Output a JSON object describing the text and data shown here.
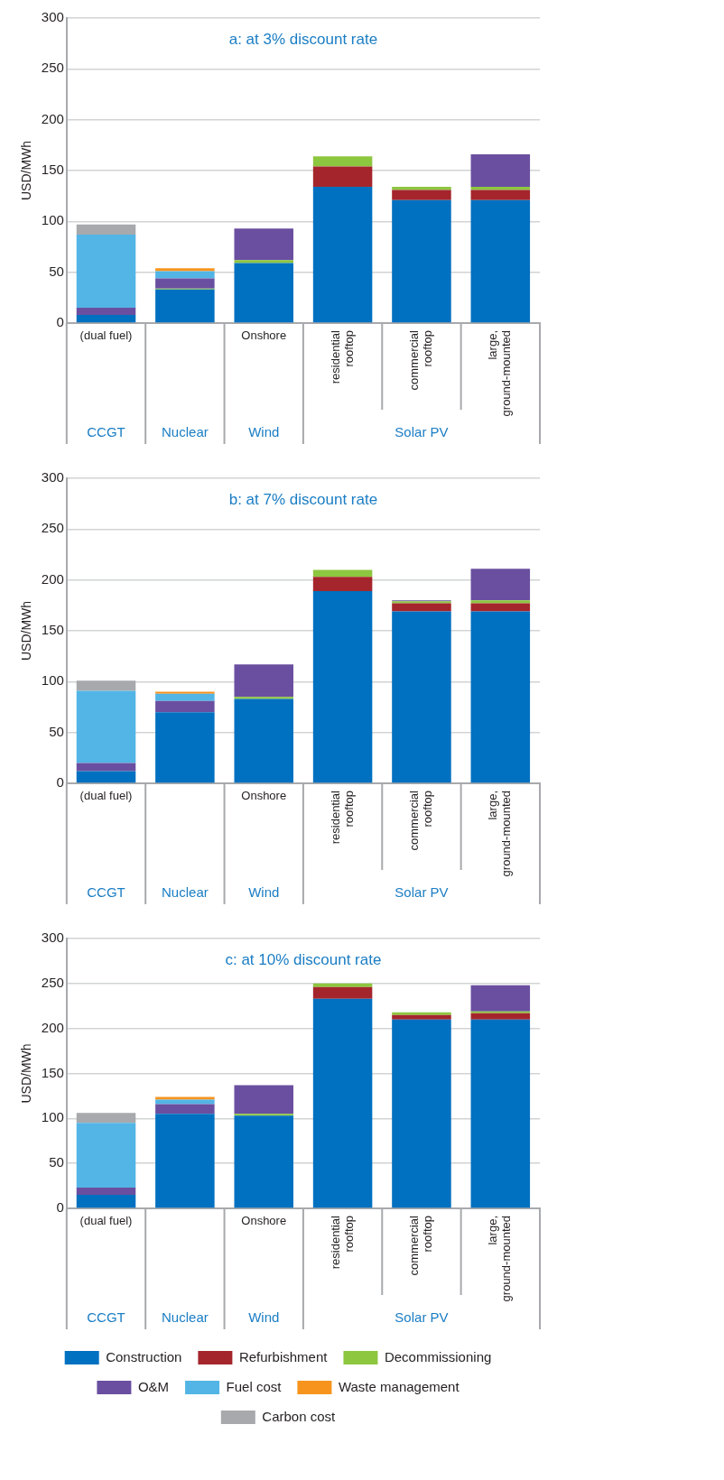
{
  "chart_data": [
    {
      "type": "bar",
      "stacked": true,
      "title": "a: at 3% discount rate",
      "ylabel": "USD/MWh",
      "categories": [
        "(dual fuel)",
        null,
        "Onshore",
        "residential rooftop",
        "commercial rooftop",
        "large, ground-mounted"
      ],
      "ylim": [
        0,
        300
      ],
      "yticks": [
        0,
        50,
        100,
        150,
        200,
        250,
        300
      ],
      "grid": "y",
      "legend": false,
      "annotations": [
        "CCGT",
        "Nuclear",
        "Wind",
        "Solar PV"
      ],
      "series": [
        {
          "color": "#0070c0",
          "values": [
            8,
            33,
            59,
            134,
            121,
            121
          ]
        },
        {
          "color": "#a4262c",
          "values": [
            null,
            null,
            null,
            20,
            10,
            10
          ]
        },
        {
          "color": "#8dc63f",
          "values": [
            null,
            1,
            3,
            10,
            3,
            3
          ]
        },
        {
          "color": "#6a4fa0",
          "values": [
            7,
            10,
            31,
            null,
            null,
            32
          ]
        },
        {
          "color": "#52b5e6",
          "values": [
            72,
            7,
            null,
            null,
            null,
            null
          ]
        },
        {
          "color": "#f7941d",
          "values": [
            null,
            3,
            null,
            null,
            null,
            null
          ]
        },
        {
          "color": "#a7a9ac",
          "values": [
            10,
            null,
            null,
            null,
            null,
            null
          ]
        }
      ]
    },
    {
      "type": "bar",
      "stacked": true,
      "title": "b: at 7% discount rate",
      "ylabel": "USD/MWh",
      "categories": [
        "(dual fuel)",
        null,
        "Onshore",
        "residential rooftop",
        "commercial rooftop",
        "large, ground-mounted"
      ],
      "ylim": [
        0,
        300
      ],
      "yticks": [
        0,
        50,
        100,
        150,
        200,
        250,
        300
      ],
      "grid": "y",
      "legend": false,
      "annotations": [
        "CCGT",
        "Nuclear",
        "Wind",
        "Solar PV"
      ],
      "series": [
        {
          "color": "#0070c0",
          "values": [
            12,
            70,
            83,
            189,
            169,
            169
          ]
        },
        {
          "color": "#a4262c",
          "values": [
            null,
            null,
            null,
            14,
            8,
            8
          ]
        },
        {
          "color": "#8dc63f",
          "values": [
            null,
            null,
            2,
            7,
            2,
            3
          ]
        },
        {
          "color": "#6a4fa0",
          "values": [
            8,
            11,
            32,
            null,
            1,
            31
          ]
        },
        {
          "color": "#52b5e6",
          "values": [
            71,
            7,
            null,
            null,
            null,
            null
          ]
        },
        {
          "color": "#f7941d",
          "values": [
            null,
            2,
            null,
            null,
            null,
            null
          ]
        },
        {
          "color": "#a7a9ac",
          "values": [
            10,
            null,
            null,
            null,
            null,
            null
          ]
        }
      ]
    },
    {
      "type": "bar",
      "stacked": true,
      "title": "c: at 10% discount rate",
      "ylabel": "USD/MWh",
      "categories": [
        "(dual fuel)",
        null,
        "Onshore",
        "residential rooftop",
        "commercial rooftop",
        "large, ground-mounted"
      ],
      "ylim": [
        0,
        300
      ],
      "yticks": [
        0,
        50,
        100,
        150,
        200,
        250,
        300
      ],
      "grid": "y",
      "legend": "bottom",
      "annotations": [
        "CCGT",
        "Nuclear",
        "Wind",
        "Solar PV"
      ],
      "series": [
        {
          "name": "Construction",
          "color": "#0070c0",
          "values": [
            15,
            105,
            103,
            233,
            210,
            210
          ]
        },
        {
          "name": "Refurbishment",
          "color": "#a4262c",
          "values": [
            null,
            null,
            null,
            13,
            5,
            7
          ]
        },
        {
          "name": "Decommissioning",
          "color": "#8dc63f",
          "values": [
            null,
            null,
            2,
            4,
            3,
            2
          ]
        },
        {
          "name": "O&M",
          "color": "#6a4fa0",
          "values": [
            8,
            11,
            32,
            null,
            null,
            29
          ]
        },
        {
          "name": "Fuel cost",
          "color": "#52b5e6",
          "values": [
            72,
            5,
            null,
            null,
            null,
            null
          ]
        },
        {
          "name": "Waste management",
          "color": "#f7941d",
          "values": [
            null,
            3,
            null,
            null,
            null,
            null
          ]
        },
        {
          "name": "Carbon cost",
          "color": "#a7a9ac",
          "values": [
            11,
            null,
            null,
            null,
            null,
            null
          ]
        }
      ]
    }
  ]
}
